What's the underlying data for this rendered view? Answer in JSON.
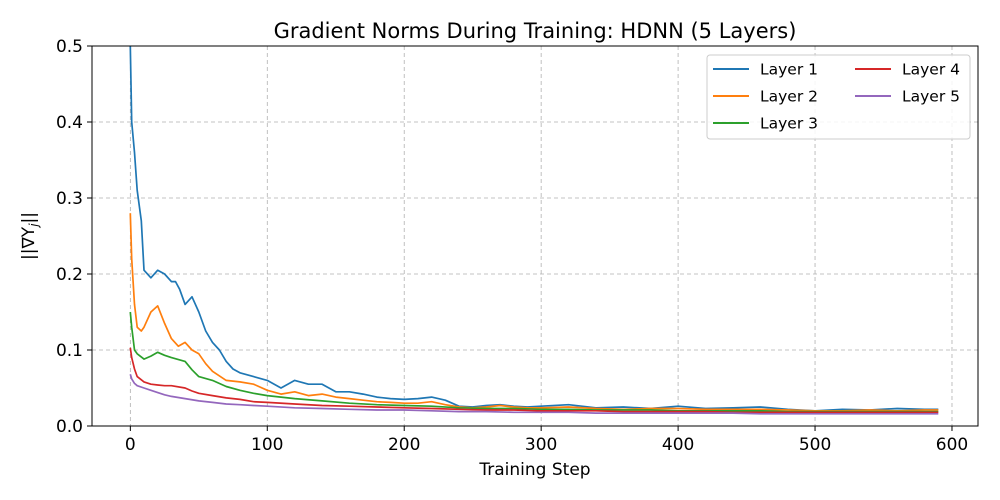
{
  "chart_data": {
    "type": "line",
    "title": "Gradient Norms During Training: HDNN (5 Layers)",
    "xlabel": "Training Step",
    "ylabel": "||∇Y_j||",
    "xlim": [
      -28,
      619
    ],
    "ylim": [
      0.0,
      0.5
    ],
    "xticks": [
      0,
      100,
      200,
      300,
      400,
      500,
      600
    ],
    "yticks": [
      0.0,
      0.1,
      0.2,
      0.3,
      0.4,
      0.5
    ],
    "grid": true,
    "legend": {
      "placement": "top-right",
      "columns": 2
    },
    "series": [
      {
        "name": "Layer 1",
        "color": "#1f77b4",
        "x": [
          0,
          1,
          3,
          5,
          8,
          10,
          15,
          20,
          25,
          30,
          33,
          36,
          40,
          45,
          50,
          55,
          60,
          65,
          70,
          75,
          80,
          90,
          100,
          110,
          120,
          130,
          140,
          150,
          160,
          170,
          180,
          190,
          200,
          210,
          220,
          230,
          240,
          250,
          260,
          270,
          280,
          290,
          300,
          320,
          340,
          360,
          380,
          400,
          420,
          440,
          460,
          480,
          500,
          520,
          540,
          560,
          580,
          590
        ],
        "y": [
          0.5,
          0.4,
          0.36,
          0.31,
          0.27,
          0.205,
          0.195,
          0.205,
          0.2,
          0.19,
          0.19,
          0.18,
          0.16,
          0.17,
          0.15,
          0.125,
          0.11,
          0.1,
          0.085,
          0.075,
          0.07,
          0.065,
          0.06,
          0.05,
          0.06,
          0.055,
          0.055,
          0.045,
          0.045,
          0.042,
          0.038,
          0.036,
          0.035,
          0.036,
          0.038,
          0.034,
          0.026,
          0.025,
          0.027,
          0.028,
          0.026,
          0.025,
          0.026,
          0.028,
          0.024,
          0.025,
          0.023,
          0.026,
          0.023,
          0.024,
          0.025,
          0.022,
          0.02,
          0.022,
          0.021,
          0.023,
          0.022,
          0.022
        ]
      },
      {
        "name": "Layer 2",
        "color": "#ff7f0e",
        "x": [
          0,
          1,
          3,
          5,
          8,
          10,
          15,
          20,
          25,
          30,
          35,
          40,
          45,
          50,
          55,
          60,
          70,
          80,
          90,
          100,
          110,
          120,
          130,
          140,
          150,
          160,
          170,
          180,
          190,
          200,
          210,
          220,
          230,
          240,
          250,
          260,
          270,
          280,
          290,
          300,
          320,
          340,
          360,
          380,
          400,
          420,
          440,
          460,
          480,
          500,
          520,
          540,
          560,
          580,
          590
        ],
        "y": [
          0.28,
          0.22,
          0.16,
          0.13,
          0.125,
          0.13,
          0.15,
          0.158,
          0.135,
          0.115,
          0.105,
          0.11,
          0.1,
          0.095,
          0.082,
          0.072,
          0.06,
          0.058,
          0.055,
          0.047,
          0.042,
          0.045,
          0.04,
          0.042,
          0.038,
          0.036,
          0.034,
          0.032,
          0.031,
          0.03,
          0.03,
          0.032,
          0.028,
          0.025,
          0.024,
          0.025,
          0.027,
          0.025,
          0.024,
          0.024,
          0.025,
          0.023,
          0.022,
          0.023,
          0.023,
          0.022,
          0.022,
          0.022,
          0.021,
          0.02,
          0.02,
          0.021,
          0.02,
          0.021,
          0.021
        ]
      },
      {
        "name": "Layer 3",
        "color": "#2ca02c",
        "x": [
          0,
          1,
          3,
          5,
          10,
          15,
          20,
          25,
          30,
          40,
          45,
          50,
          60,
          70,
          80,
          90,
          100,
          120,
          140,
          160,
          180,
          200,
          220,
          240,
          260,
          280,
          300,
          320,
          340,
          360,
          380,
          400,
          420,
          440,
          460,
          480,
          500,
          520,
          540,
          560,
          580,
          590
        ],
        "y": [
          0.15,
          0.13,
          0.1,
          0.095,
          0.088,
          0.092,
          0.097,
          0.093,
          0.09,
          0.085,
          0.074,
          0.065,
          0.06,
          0.052,
          0.047,
          0.043,
          0.04,
          0.036,
          0.033,
          0.03,
          0.028,
          0.027,
          0.026,
          0.024,
          0.023,
          0.023,
          0.022,
          0.022,
          0.021,
          0.021,
          0.021,
          0.02,
          0.02,
          0.02,
          0.02,
          0.019,
          0.019,
          0.019,
          0.019,
          0.019,
          0.019,
          0.019
        ]
      },
      {
        "name": "Layer 4",
        "color": "#d62728",
        "x": [
          0,
          1,
          3,
          5,
          10,
          15,
          20,
          25,
          30,
          40,
          45,
          50,
          60,
          70,
          80,
          90,
          100,
          120,
          140,
          160,
          180,
          200,
          220,
          240,
          260,
          280,
          300,
          320,
          340,
          360,
          380,
          400,
          420,
          440,
          460,
          480,
          500,
          520,
          540,
          560,
          580,
          590
        ],
        "y": [
          0.103,
          0.09,
          0.075,
          0.065,
          0.058,
          0.055,
          0.054,
          0.053,
          0.053,
          0.05,
          0.046,
          0.043,
          0.04,
          0.037,
          0.035,
          0.032,
          0.031,
          0.029,
          0.027,
          0.026,
          0.025,
          0.024,
          0.023,
          0.022,
          0.021,
          0.021,
          0.02,
          0.02,
          0.02,
          0.019,
          0.019,
          0.019,
          0.019,
          0.018,
          0.018,
          0.018,
          0.018,
          0.018,
          0.018,
          0.018,
          0.018,
          0.018
        ]
      },
      {
        "name": "Layer 5",
        "color": "#9467bd",
        "x": [
          0,
          1,
          3,
          5,
          10,
          15,
          20,
          25,
          30,
          40,
          50,
          60,
          70,
          80,
          90,
          100,
          120,
          140,
          160,
          180,
          200,
          220,
          240,
          260,
          280,
          300,
          320,
          340,
          360,
          380,
          400,
          420,
          440,
          460,
          480,
          500,
          520,
          540,
          560,
          580,
          590
        ],
        "y": [
          0.068,
          0.062,
          0.056,
          0.053,
          0.05,
          0.047,
          0.044,
          0.041,
          0.039,
          0.036,
          0.033,
          0.031,
          0.029,
          0.028,
          0.027,
          0.026,
          0.024,
          0.023,
          0.022,
          0.021,
          0.021,
          0.02,
          0.019,
          0.019,
          0.018,
          0.018,
          0.018,
          0.017,
          0.017,
          0.017,
          0.017,
          0.017,
          0.017,
          0.016,
          0.016,
          0.016,
          0.016,
          0.016,
          0.016,
          0.016,
          0.016
        ]
      }
    ]
  }
}
